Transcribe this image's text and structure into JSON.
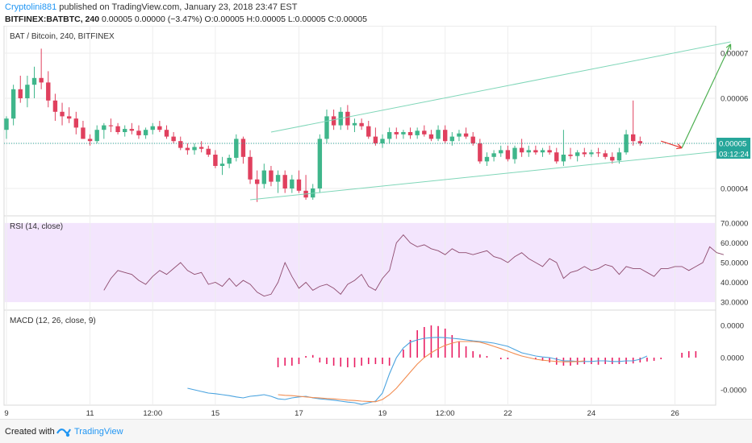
{
  "header": {
    "author": "Cryptolini881",
    "published_text": "published on TradingView.com, January 23, 2018 23:47 EST",
    "symbol": "BITFINEX:BATBTC, 240",
    "ohlc": "0.00005 0.00000 (−3.47%) O:0.00005 H:0.00005 L:0.00005 C:0.00005"
  },
  "footer": {
    "created_with": "Created with",
    "brand": "TradingView"
  },
  "colors": {
    "up": "#26a69a",
    "down": "#ef5350",
    "up_candle": "#3fb68b",
    "down_candle": "#e0405e",
    "channel": "#7fd6b8",
    "projection_up": "#4caf50",
    "projection_down": "#e53935",
    "rsi_band": "#f3e5fd",
    "rsi_line": "#8e4b6e",
    "macd_line": "#4aa3df",
    "signal_line": "#f28c50",
    "histogram": "#e91e63",
    "price_tag": "#26a69a"
  },
  "chart_data": [
    {
      "type": "candlestick",
      "title": "BAT / Bitcoin, 240, BITFINEX",
      "ylim": [
        3.5e-06,
        7.5e-06
      ],
      "y_ticks": [
        "0.00007",
        "0.00006",
        "0.00005",
        "0.00004"
      ],
      "y_tick_values": [
        7e-06,
        6e-06,
        5e-06,
        4e-06
      ],
      "last_price": "0.00005",
      "last_price_value": 5e-06,
      "countdown": "03:12:24",
      "candles": [
        {
          "o": 5.3e-06,
          "h": 5.6e-06,
          "l": 5.1e-06,
          "c": 5.55e-06
        },
        {
          "o": 5.55e-06,
          "h": 6.3e-06,
          "l": 5.4e-06,
          "c": 6.2e-06
        },
        {
          "o": 6.2e-06,
          "h": 6.5e-06,
          "l": 5.9e-06,
          "c": 6e-06
        },
        {
          "o": 6e-06,
          "h": 6.5e-06,
          "l": 5.8e-06,
          "c": 6.3e-06
        },
        {
          "o": 6.3e-06,
          "h": 6.7e-06,
          "l": 6e-06,
          "c": 6.45e-06
        },
        {
          "o": 6.45e-06,
          "h": 7.1e-06,
          "l": 6.2e-06,
          "c": 6.35e-06
        },
        {
          "o": 6.35e-06,
          "h": 6.6e-06,
          "l": 5.8e-06,
          "c": 5.95e-06
        },
        {
          "o": 5.95e-06,
          "h": 6.1e-06,
          "l": 5.5e-06,
          "c": 5.7e-06
        },
        {
          "o": 5.7e-06,
          "h": 5.9e-06,
          "l": 5.4e-06,
          "c": 5.6e-06
        },
        {
          "o": 5.6e-06,
          "h": 5.8e-06,
          "l": 5.45e-06,
          "c": 5.55e-06
        },
        {
          "o": 5.55e-06,
          "h": 5.7e-06,
          "l": 5.2e-06,
          "c": 5.35e-06
        },
        {
          "o": 5.35e-06,
          "h": 5.5e-06,
          "l": 5.1e-06,
          "c": 5.1e-06
        },
        {
          "o": 5.1e-06,
          "h": 5.2e-06,
          "l": 4.95e-06,
          "c": 5.05e-06
        },
        {
          "o": 5.05e-06,
          "h": 5.4e-06,
          "l": 5e-06,
          "c": 5.3e-06
        },
        {
          "o": 5.3e-06,
          "h": 5.45e-06,
          "l": 5.1e-06,
          "c": 5.4e-06
        },
        {
          "o": 5.4e-06,
          "h": 5.55e-06,
          "l": 5.25e-06,
          "c": 5.38e-06
        },
        {
          "o": 5.38e-06,
          "h": 5.45e-06,
          "l": 5.2e-06,
          "c": 5.25e-06
        },
        {
          "o": 5.25e-06,
          "h": 5.4e-06,
          "l": 5.15e-06,
          "c": 5.32e-06
        },
        {
          "o": 5.32e-06,
          "h": 5.45e-06,
          "l": 5.2e-06,
          "c": 5.28e-06
        },
        {
          "o": 5.28e-06,
          "h": 5.4e-06,
          "l": 5.1e-06,
          "c": 5.18e-06
        },
        {
          "o": 5.18e-06,
          "h": 5.35e-06,
          "l": 5.1e-06,
          "c": 5.3e-06
        },
        {
          "o": 5.3e-06,
          "h": 5.45e-06,
          "l": 5.2e-06,
          "c": 5.38e-06
        },
        {
          "o": 5.38e-06,
          "h": 5.5e-06,
          "l": 5.25e-06,
          "c": 5.3e-06
        },
        {
          "o": 5.3e-06,
          "h": 5.4e-06,
          "l": 5.1e-06,
          "c": 5.15e-06
        },
        {
          "o": 5.15e-06,
          "h": 5.25e-06,
          "l": 5e-06,
          "c": 5.05e-06
        },
        {
          "o": 5.05e-06,
          "h": 5.15e-06,
          "l": 4.85e-06,
          "c": 4.9e-06
        },
        {
          "o": 4.9e-06,
          "h": 5e-06,
          "l": 4.75e-06,
          "c": 4.85e-06
        },
        {
          "o": 4.85e-06,
          "h": 5e-06,
          "l": 4.75e-06,
          "c": 4.92e-06
        },
        {
          "o": 4.92e-06,
          "h": 5.05e-06,
          "l": 4.8e-06,
          "c": 4.88e-06
        },
        {
          "o": 4.88e-06,
          "h": 4.95e-06,
          "l": 4.7e-06,
          "c": 4.75e-06
        },
        {
          "o": 4.75e-06,
          "h": 4.85e-06,
          "l": 4.45e-06,
          "c": 4.5e-06
        },
        {
          "o": 4.5e-06,
          "h": 4.7e-06,
          "l": 4.3e-06,
          "c": 4.55e-06
        },
        {
          "o": 4.55e-06,
          "h": 4.75e-06,
          "l": 4.45e-06,
          "c": 4.68e-06
        },
        {
          "o": 4.68e-06,
          "h": 5.2e-06,
          "l": 4.6e-06,
          "c": 5.1e-06
        },
        {
          "o": 5.1e-06,
          "h": 5.15e-06,
          "l": 4.55e-06,
          "c": 4.7e-06
        },
        {
          "o": 4.7e-06,
          "h": 4.85e-06,
          "l": 4.1e-06,
          "c": 4.2e-06
        },
        {
          "o": 4.2e-06,
          "h": 4.4e-06,
          "l": 3.7e-06,
          "c": 4.1e-06
        },
        {
          "o": 4.1e-06,
          "h": 4.55e-06,
          "l": 4e-06,
          "c": 4.4e-06
        },
        {
          "o": 4.4e-06,
          "h": 4.5e-06,
          "l": 4.05e-06,
          "c": 4.15e-06
        },
        {
          "o": 4.15e-06,
          "h": 4.4e-06,
          "l": 3.9e-06,
          "c": 4.3e-06
        },
        {
          "o": 4.3e-06,
          "h": 4.4e-06,
          "l": 3.9e-06,
          "c": 4e-06
        },
        {
          "o": 4e-06,
          "h": 4.3e-06,
          "l": 3.9e-06,
          "c": 4.2e-06
        },
        {
          "o": 4.2e-06,
          "h": 4.4e-06,
          "l": 3.9e-06,
          "c": 3.95e-06
        },
        {
          "o": 3.95e-06,
          "h": 4.3e-06,
          "l": 3.75e-06,
          "c": 3.8e-06
        },
        {
          "o": 3.8e-06,
          "h": 4.1e-06,
          "l": 3.75e-06,
          "c": 4e-06
        },
        {
          "o": 4e-06,
          "h": 5.2e-06,
          "l": 3.9e-06,
          "c": 5.1e-06
        },
        {
          "o": 5.1e-06,
          "h": 5.75e-06,
          "l": 5e-06,
          "c": 5.6e-06
        },
        {
          "o": 5.6e-06,
          "h": 5.75e-06,
          "l": 5.3e-06,
          "c": 5.4e-06
        },
        {
          "o": 5.4e-06,
          "h": 5.8e-06,
          "l": 5.3e-06,
          "c": 5.7e-06
        },
        {
          "o": 5.7e-06,
          "h": 5.85e-06,
          "l": 5.3e-06,
          "c": 5.4e-06
        },
        {
          "o": 5.4e-06,
          "h": 5.55e-06,
          "l": 5.25e-06,
          "c": 5.45e-06
        },
        {
          "o": 5.45e-06,
          "h": 5.55e-06,
          "l": 5.3e-06,
          "c": 5.38e-06
        },
        {
          "o": 5.38e-06,
          "h": 5.5e-06,
          "l": 5.1e-06,
          "c": 5.15e-06
        },
        {
          "o": 5.15e-06,
          "h": 5.35e-06,
          "l": 4.95e-06,
          "c": 5e-06
        },
        {
          "o": 5e-06,
          "h": 5.2e-06,
          "l": 4.9e-06,
          "c": 5.1e-06
        },
        {
          "o": 5.1e-06,
          "h": 5.35e-06,
          "l": 5e-06,
          "c": 5.25e-06
        },
        {
          "o": 5.25e-06,
          "h": 5.35e-06,
          "l": 5.1e-06,
          "c": 5.2e-06
        },
        {
          "o": 5.2e-06,
          "h": 5.3e-06,
          "l": 5.1e-06,
          "c": 5.25e-06
        },
        {
          "o": 5.25e-06,
          "h": 5.35e-06,
          "l": 5.1e-06,
          "c": 5.18e-06
        },
        {
          "o": 5.18e-06,
          "h": 5.35e-06,
          "l": 5.1e-06,
          "c": 5.28e-06
        },
        {
          "o": 5.28e-06,
          "h": 5.4e-06,
          "l": 5.15e-06,
          "c": 5.2e-06
        },
        {
          "o": 5.2e-06,
          "h": 5.3e-06,
          "l": 5.05e-06,
          "c": 5.1e-06
        },
        {
          "o": 5.1e-06,
          "h": 5.4e-06,
          "l": 5.05e-06,
          "c": 5.3e-06
        },
        {
          "o": 5.3e-06,
          "h": 5.4e-06,
          "l": 5e-06,
          "c": 5.05e-06
        },
        {
          "o": 5.05e-06,
          "h": 5.25e-06,
          "l": 4.95e-06,
          "c": 5.15e-06
        },
        {
          "o": 5.15e-06,
          "h": 5.3e-06,
          "l": 5.05e-06,
          "c": 5.22e-06
        },
        {
          "o": 5.22e-06,
          "h": 5.35e-06,
          "l": 5.1e-06,
          "c": 5.15e-06
        },
        {
          "o": 5.15e-06,
          "h": 5.25e-06,
          "l": 4.95e-06,
          "c": 5e-06
        },
        {
          "o": 5e-06,
          "h": 5.1e-06,
          "l": 4.55e-06,
          "c": 4.6e-06
        },
        {
          "o": 4.6e-06,
          "h": 4.8e-06,
          "l": 4.5e-06,
          "c": 4.7e-06
        },
        {
          "o": 4.7e-06,
          "h": 4.85e-06,
          "l": 4.6e-06,
          "c": 4.78e-06
        },
        {
          "o": 4.78e-06,
          "h": 4.95e-06,
          "l": 4.7e-06,
          "c": 4.85e-06
        },
        {
          "o": 4.85e-06,
          "h": 4.95e-06,
          "l": 4.6e-06,
          "c": 4.65e-06
        },
        {
          "o": 4.65e-06,
          "h": 4.95e-06,
          "l": 4.55e-06,
          "c": 4.9e-06
        },
        {
          "o": 4.9e-06,
          "h": 5.1e-06,
          "l": 4.7e-06,
          "c": 4.8e-06
        },
        {
          "o": 4.8e-06,
          "h": 4.95e-06,
          "l": 4.7e-06,
          "c": 4.85e-06
        },
        {
          "o": 4.85e-06,
          "h": 4.95e-06,
          "l": 4.75e-06,
          "c": 4.8e-06
        },
        {
          "o": 4.8e-06,
          "h": 4.9e-06,
          "l": 4.7e-06,
          "c": 4.85e-06
        },
        {
          "o": 4.85e-06,
          "h": 4.95e-06,
          "l": 4.75e-06,
          "c": 4.8e-06
        },
        {
          "o": 4.8e-06,
          "h": 4.9e-06,
          "l": 4.55e-06,
          "c": 4.6e-06
        },
        {
          "o": 4.6e-06,
          "h": 5.3e-06,
          "l": 4.5e-06,
          "c": 4.75e-06
        },
        {
          "o": 4.75e-06,
          "h": 4.9e-06,
          "l": 4.65e-06,
          "c": 4.72e-06
        },
        {
          "o": 4.72e-06,
          "h": 4.85e-06,
          "l": 4.6e-06,
          "c": 4.8e-06
        },
        {
          "o": 4.8e-06,
          "h": 4.9e-06,
          "l": 4.7e-06,
          "c": 4.76e-06
        },
        {
          "o": 4.76e-06,
          "h": 4.86e-06,
          "l": 4.7e-06,
          "c": 4.8e-06
        },
        {
          "o": 4.8e-06,
          "h": 4.9e-06,
          "l": 4.7e-06,
          "c": 4.78e-06
        },
        {
          "o": 4.78e-06,
          "h": 4.85e-06,
          "l": 4.65e-06,
          "c": 4.7e-06
        },
        {
          "o": 4.7e-06,
          "h": 4.8e-06,
          "l": 4.55e-06,
          "c": 4.62e-06
        },
        {
          "o": 4.62e-06,
          "h": 4.9e-06,
          "l": 4.55e-06,
          "c": 4.8e-06
        },
        {
          "o": 4.8e-06,
          "h": 5.3e-06,
          "l": 4.75e-06,
          "c": 5.2e-06
        },
        {
          "o": 5.2e-06,
          "h": 5.95e-06,
          "l": 4.95e-06,
          "c": 5.05e-06
        },
        {
          "o": 5.05e-06,
          "h": 5.15e-06,
          "l": 4.95e-06,
          "c": 5e-06
        }
      ],
      "channel": {
        "lower": [
          [
            35,
            3.75e-06
          ],
          [
            104,
            4.85e-06
          ]
        ],
        "upper": [
          [
            38,
            5.25e-06
          ],
          [
            104,
            7.25e-06
          ]
        ]
      },
      "projection": {
        "down": [
          [
            94,
            5.05e-06
          ],
          [
            97,
            4.9e-06
          ]
        ],
        "up": [
          [
            97,
            4.9e-06
          ],
          [
            104,
            7.2e-06
          ]
        ]
      }
    },
    {
      "type": "line",
      "title": "RSI (14, close)",
      "ylim": [
        28,
        72
      ],
      "y_ticks": [
        "70.0000",
        "60.0000",
        "50.0000",
        "40.0000",
        "30.0000"
      ],
      "y_tick_values": [
        70,
        60,
        50,
        40,
        30
      ],
      "band": [
        30,
        70
      ],
      "x_start_index": 14,
      "values": [
        36,
        42,
        46,
        45,
        44,
        41,
        39,
        43,
        46,
        44,
        47,
        50,
        46,
        44,
        45,
        39,
        40,
        38,
        42,
        38,
        41,
        39,
        35,
        33,
        34,
        40,
        50,
        43,
        37,
        40,
        36,
        38,
        39,
        37,
        34,
        39,
        41,
        44,
        38,
        36,
        42,
        46,
        60,
        64,
        60,
        58,
        59,
        57,
        56,
        54,
        57,
        55,
        55,
        54,
        55,
        56,
        53,
        52,
        50,
        53,
        55,
        52,
        50,
        48,
        52,
        50,
        42,
        45,
        46,
        48,
        46,
        47,
        49,
        48,
        44,
        48,
        47,
        47,
        45,
        43,
        47,
        47,
        48,
        48,
        46,
        48,
        50,
        58,
        55,
        54
      ]
    },
    {
      "type": "line+bar",
      "title": "MACD (12, 26, close, 9)",
      "ylim": [
        -1.4e-06,
        1.4e-06
      ],
      "y_ticks": [
        "0.0000",
        "0.0000",
        "-0.0000"
      ],
      "y_tick_values": [
        1e-06,
        0,
        -1e-06
      ],
      "macd_start_index": 26,
      "macd": [
        -0.95,
        -1.0,
        -1.05,
        -1.1,
        -1.12,
        -1.15,
        -1.18,
        -1.22,
        -1.25,
        -1.2,
        -1.18,
        -1.15,
        -1.2,
        -1.28,
        -1.3,
        -1.25,
        -1.22,
        -1.2,
        -1.25,
        -1.28,
        -1.3,
        -1.32,
        -1.35,
        -1.38,
        -1.4,
        -1.45,
        -1.4,
        -1.35,
        -1.1,
        -0.5,
        0.0,
        0.3,
        0.48,
        0.55,
        0.6,
        0.62,
        0.63,
        0.62,
        0.6,
        0.58,
        0.55,
        0.52,
        0.5,
        0.48,
        0.45,
        0.4,
        0.35,
        0.25,
        0.15,
        0.1,
        0.05,
        0.02,
        0.0,
        -0.05,
        -0.1,
        -0.1,
        -0.12,
        -0.12,
        -0.12,
        -0.1,
        -0.1,
        -0.12,
        -0.12,
        -0.1,
        -0.1,
        -0.05,
        0.05
      ],
      "signal_start_index": 39,
      "signal": [
        -1.15,
        -1.17,
        -1.18,
        -1.2,
        -1.22,
        -1.24,
        -1.25,
        -1.27,
        -1.28,
        -1.3,
        -1.32,
        -1.33,
        -1.35,
        -1.36,
        -1.37,
        -1.3,
        -1.15,
        -0.95,
        -0.7,
        -0.45,
        -0.2,
        0.0,
        0.15,
        0.28,
        0.38,
        0.45,
        0.5,
        0.5,
        0.5,
        0.48,
        0.42,
        0.35,
        0.28,
        0.2,
        0.12,
        0.05,
        0.0,
        -0.05,
        -0.08,
        -0.1,
        -0.12,
        -0.13,
        -0.13,
        -0.12,
        -0.1
      ],
      "histogram_start_index": 39,
      "histogram": [
        -0.3,
        -0.25,
        -0.25,
        -0.2,
        0.05,
        0.08,
        -0.15,
        -0.2,
        -0.25,
        -0.28,
        -0.3,
        -0.3,
        -0.25,
        -0.2,
        -0.2,
        -0.2,
        -0.25,
        0.0,
        0.25,
        0.55,
        0.85,
        0.95,
        1.0,
        0.98,
        0.9,
        0.7,
        0.5,
        0.35,
        0.2,
        0.1,
        0.05,
        0.0,
        -0.05,
        -0.05,
        0.0,
        0.0,
        0.0,
        -0.05,
        -0.1,
        -0.15,
        -0.22,
        -0.25,
        -0.25,
        -0.22,
        -0.2,
        -0.2,
        -0.22,
        -0.2,
        -0.2,
        -0.2,
        -0.2,
        -0.18,
        -0.15,
        -0.12,
        -0.1,
        -0.05,
        0.0,
        0.0,
        0.15,
        0.2,
        0.2
      ]
    }
  ],
  "x_axis": {
    "ticks": [
      {
        "label": "9",
        "i": 0
      },
      {
        "label": "11",
        "i": 12
      },
      {
        "label": "12:00",
        "i": 21
      },
      {
        "label": "15",
        "i": 30
      },
      {
        "label": "17",
        "i": 42
      },
      {
        "label": "19",
        "i": 54
      },
      {
        "label": "12:00",
        "i": 63
      },
      {
        "label": "22",
        "i": 72
      },
      {
        "label": "24",
        "i": 84
      },
      {
        "label": "26",
        "i": 96
      }
    ]
  }
}
